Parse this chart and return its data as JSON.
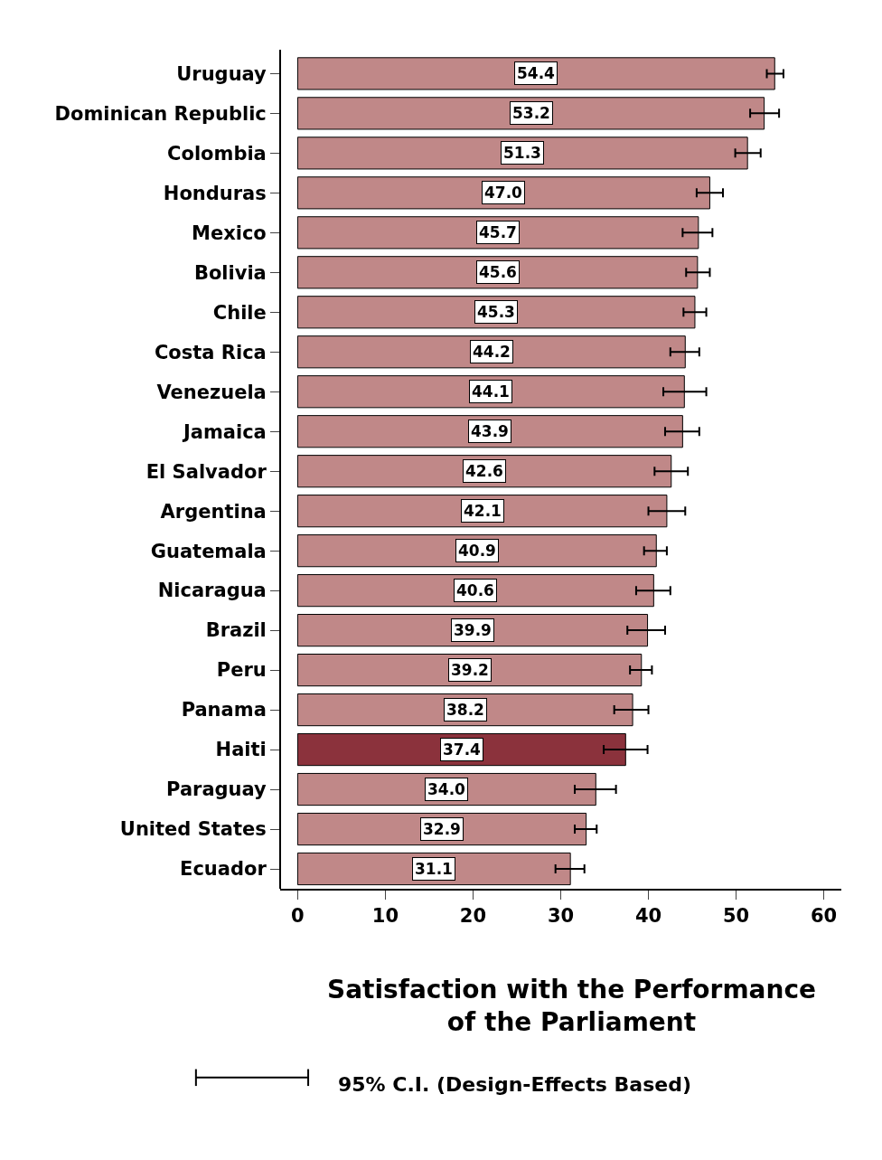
{
  "chart_data": {
    "type": "bar",
    "orientation": "horizontal",
    "title": "Satisfaction with the Performance\nof the Parliament",
    "categories": [
      "Uruguay",
      "Dominican Republic",
      "Colombia",
      "Honduras",
      "Mexico",
      "Bolivia",
      "Chile",
      "Costa Rica",
      "Venezuela",
      "Jamaica",
      "El Salvador",
      "Argentina",
      "Guatemala",
      "Nicaragua",
      "Brazil",
      "Peru",
      "Panama",
      "Haiti",
      "Paraguay",
      "United States",
      "Ecuador"
    ],
    "values": [
      54.4,
      53.2,
      51.3,
      47.0,
      45.7,
      45.6,
      45.3,
      44.2,
      44.1,
      43.9,
      42.6,
      42.1,
      40.9,
      40.6,
      39.9,
      39.2,
      38.2,
      37.4,
      34.0,
      32.9,
      31.1
    ],
    "value_labels": [
      "54.4",
      "53.2",
      "51.3",
      "47.0",
      "45.7",
      "45.6",
      "45.3",
      "44.2",
      "44.1",
      "43.9",
      "42.6",
      "42.1",
      "40.9",
      "40.6",
      "39.9",
      "39.2",
      "38.2",
      "37.4",
      "34.0",
      "32.9",
      "31.1"
    ],
    "colors": [
      "#c08888",
      "#c08888",
      "#c08888",
      "#c08888",
      "#c08888",
      "#c08888",
      "#c08888",
      "#c08888",
      "#c08888",
      "#c08888",
      "#c08888",
      "#c08888",
      "#c08888",
      "#c08888",
      "#c08888",
      "#c08888",
      "#c08888",
      "#8b323c",
      "#c08888",
      "#c08888",
      "#c08888"
    ],
    "errors": [
      [
        53.5,
        55.4
      ],
      [
        51.6,
        54.9
      ],
      [
        49.9,
        52.8
      ],
      [
        45.5,
        48.5
      ],
      [
        43.9,
        47.3
      ],
      [
        44.3,
        47.0
      ],
      [
        44.0,
        46.6
      ],
      [
        42.5,
        45.8
      ],
      [
        41.7,
        46.6
      ],
      [
        41.9,
        45.8
      ],
      [
        40.7,
        44.5
      ],
      [
        40.0,
        44.2
      ],
      [
        39.5,
        42.1
      ],
      [
        38.6,
        42.5
      ],
      [
        37.6,
        41.9
      ],
      [
        37.9,
        40.4
      ],
      [
        36.1,
        40.0
      ],
      [
        34.9,
        39.9
      ],
      [
        31.6,
        36.3
      ],
      [
        31.6,
        34.1
      ],
      [
        29.4,
        32.7
      ]
    ],
    "xlim": [
      -2,
      62
    ],
    "xticks": [
      0,
      10,
      20,
      30,
      40,
      50,
      60
    ],
    "legend": false,
    "annotations": [
      "95% C.I. (Design-Effects Based)"
    ]
  }
}
